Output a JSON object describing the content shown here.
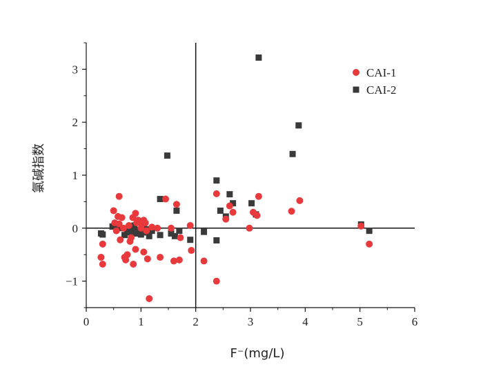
{
  "chart_data": {
    "type": "scatter",
    "xlabel": "F⁻(mg/L)",
    "ylabel": "氯碱指数",
    "xlim": [
      0,
      6
    ],
    "ylim": [
      -1.5,
      3.5
    ],
    "x_ticks": [
      "0",
      "1",
      "2",
      "3",
      "4",
      "5",
      "6"
    ],
    "y_ticks": [
      "−1",
      "0",
      "1",
      "2",
      "3"
    ],
    "x_tick_values": [
      0,
      1,
      2,
      3,
      4,
      5,
      6
    ],
    "y_tick_values": [
      -1,
      0,
      1,
      2,
      3
    ],
    "reference_lines": {
      "x": 2,
      "y": 0
    },
    "grid": false,
    "legend_position": "top-right",
    "series": [
      {
        "name": "CAI-2",
        "marker": "square",
        "color": "#3a3a3a",
        "points": [
          [
            0.27,
            -0.1
          ],
          [
            0.3,
            -0.12
          ],
          [
            0.48,
            0.03
          ],
          [
            0.52,
            0.05
          ],
          [
            0.55,
            -0.02
          ],
          [
            0.6,
            0.02
          ],
          [
            0.65,
            0.0
          ],
          [
            0.7,
            -0.13
          ],
          [
            0.75,
            -0.05
          ],
          [
            0.78,
            -0.08
          ],
          [
            0.82,
            -0.03
          ],
          [
            0.85,
            -0.1
          ],
          [
            0.88,
            0.05
          ],
          [
            0.92,
            -0.04
          ],
          [
            0.95,
            -0.1
          ],
          [
            1.0,
            -0.12
          ],
          [
            1.02,
            -0.05
          ],
          [
            1.05,
            0.0
          ],
          [
            1.08,
            -0.08
          ],
          [
            1.1,
            -0.02
          ],
          [
            1.15,
            -0.15
          ],
          [
            1.2,
            -0.05
          ],
          [
            1.35,
            -0.13
          ],
          [
            1.35,
            0.55
          ],
          [
            1.48,
            1.37
          ],
          [
            1.55,
            -0.1
          ],
          [
            1.62,
            -0.15
          ],
          [
            1.65,
            0.33
          ],
          [
            1.7,
            -0.05
          ],
          [
            1.9,
            -0.22
          ],
          [
            2.15,
            -0.07
          ],
          [
            2.38,
            0.9
          ],
          [
            2.38,
            -0.23
          ],
          [
            2.45,
            0.33
          ],
          [
            2.55,
            0.22
          ],
          [
            2.62,
            0.64
          ],
          [
            2.68,
            0.47
          ],
          [
            3.02,
            0.47
          ],
          [
            3.1,
            0.26
          ],
          [
            3.15,
            3.22
          ],
          [
            3.77,
            1.4
          ],
          [
            3.88,
            1.94
          ],
          [
            5.02,
            0.07
          ],
          [
            5.17,
            -0.05
          ]
        ]
      },
      {
        "name": "CAI-1",
        "marker": "circle",
        "color": "#e8393c",
        "points": [
          [
            0.27,
            -0.55
          ],
          [
            0.3,
            -0.68
          ],
          [
            0.3,
            -0.3
          ],
          [
            0.5,
            0.33
          ],
          [
            0.52,
            0.1
          ],
          [
            0.55,
            -0.05
          ],
          [
            0.58,
            0.22
          ],
          [
            0.6,
            0.6
          ],
          [
            0.6,
            0.08
          ],
          [
            0.62,
            -0.22
          ],
          [
            0.65,
            0.2
          ],
          [
            0.68,
            0.0
          ],
          [
            0.7,
            -0.55
          ],
          [
            0.72,
            -0.6
          ],
          [
            0.75,
            -0.5
          ],
          [
            0.78,
            0.05
          ],
          [
            0.8,
            -0.25
          ],
          [
            0.82,
            -0.18
          ],
          [
            0.85,
            0.2
          ],
          [
            0.86,
            -0.68
          ],
          [
            0.9,
            0.28
          ],
          [
            0.9,
            -0.4
          ],
          [
            0.92,
            0.1
          ],
          [
            0.95,
            0.15
          ],
          [
            1.0,
            0.0
          ],
          [
            1.02,
            0.08
          ],
          [
            1.05,
            0.15
          ],
          [
            1.05,
            -0.45
          ],
          [
            1.08,
            0.1
          ],
          [
            1.1,
            -0.05
          ],
          [
            1.12,
            -0.58
          ],
          [
            1.15,
            -1.33
          ],
          [
            1.2,
            0.02
          ],
          [
            1.3,
            0.0
          ],
          [
            1.35,
            -0.55
          ],
          [
            1.45,
            0.55
          ],
          [
            1.55,
            0.0
          ],
          [
            1.6,
            -0.62
          ],
          [
            1.65,
            0.45
          ],
          [
            1.7,
            -0.6
          ],
          [
            1.72,
            -0.18
          ],
          [
            1.9,
            0.05
          ],
          [
            1.92,
            -0.42
          ],
          [
            2.15,
            -0.62
          ],
          [
            2.38,
            0.65
          ],
          [
            2.38,
            -1.0
          ],
          [
            2.55,
            0.17
          ],
          [
            2.62,
            0.42
          ],
          [
            2.68,
            0.3
          ],
          [
            2.98,
            0.0
          ],
          [
            3.05,
            0.3
          ],
          [
            3.12,
            0.24
          ],
          [
            3.15,
            0.6
          ],
          [
            3.75,
            0.32
          ],
          [
            3.9,
            0.52
          ],
          [
            5.02,
            0.04
          ],
          [
            5.17,
            -0.3
          ]
        ]
      }
    ]
  }
}
